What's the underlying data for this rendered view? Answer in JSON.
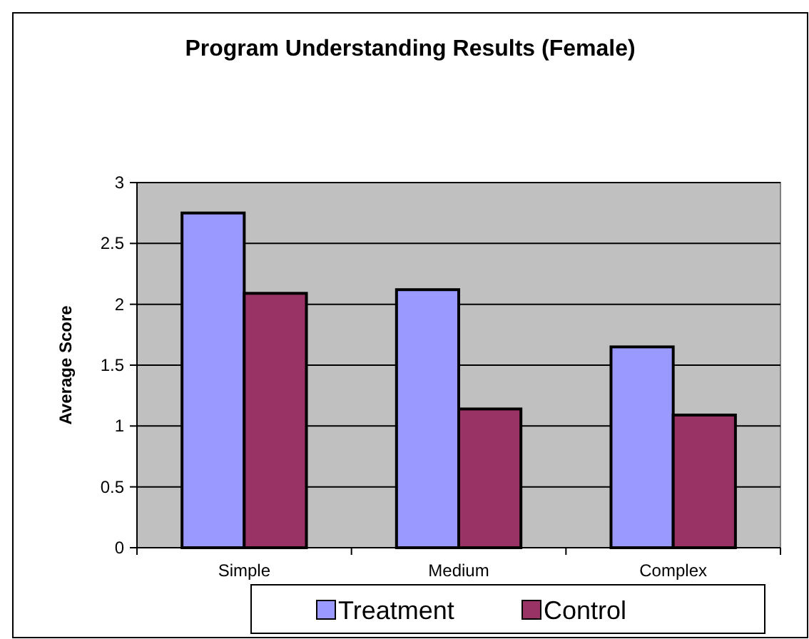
{
  "chart_data": {
    "type": "bar",
    "title": "Program Understanding Results (Female)",
    "ylabel": "Average Score",
    "categories": [
      "Simple",
      "Medium",
      "Complex"
    ],
    "series": [
      {
        "name": "Treatment",
        "color": "#9999ff",
        "values": [
          2.75,
          2.12,
          1.65
        ]
      },
      {
        "name": "Control",
        "color": "#993366",
        "values": [
          2.09,
          1.14,
          1.09
        ]
      }
    ],
    "ylim": [
      0,
      3
    ],
    "yticks": [
      0,
      0.5,
      1,
      1.5,
      2,
      2.5,
      3
    ],
    "grid": "y",
    "legend": "bottom"
  }
}
